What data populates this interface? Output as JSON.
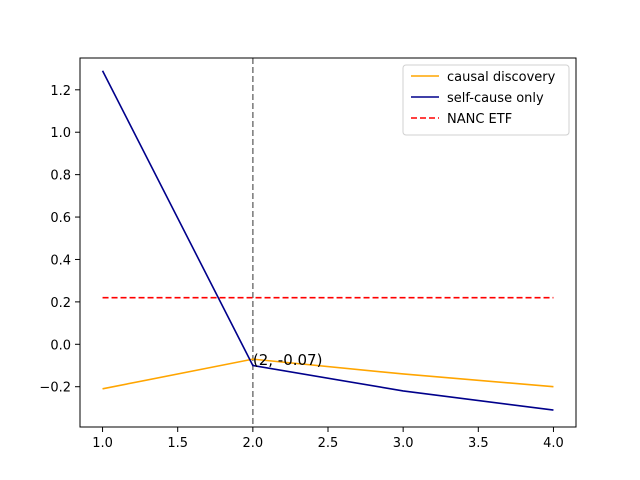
{
  "chart_data": {
    "type": "line",
    "title": "",
    "xlabel": "",
    "ylabel": "",
    "xlim": [
      0.85,
      4.15
    ],
    "ylim": [
      -0.39,
      1.35
    ],
    "xticks": [
      1.0,
      1.5,
      2.0,
      2.5,
      3.0,
      3.5,
      4.0
    ],
    "xtick_labels": [
      "1.0",
      "1.5",
      "2.0",
      "2.5",
      "3.0",
      "3.5",
      "4.0"
    ],
    "yticks": [
      -0.2,
      0.0,
      0.2,
      0.4,
      0.6,
      0.8,
      1.0,
      1.2
    ],
    "ytick_labels": [
      "−0.2",
      "0.0",
      "0.2",
      "0.4",
      "0.6",
      "0.8",
      "1.0",
      "1.2"
    ],
    "grid": false,
    "legend_position": "top-right",
    "series": [
      {
        "name": "causal discovery",
        "color": "#FFA500",
        "style": "solid",
        "x": [
          1,
          2,
          3,
          4
        ],
        "y": [
          -0.21,
          -0.07,
          -0.14,
          -0.2
        ]
      },
      {
        "name": "self-cause only",
        "color": "#00008B",
        "style": "solid",
        "x": [
          1,
          2,
          3,
          4
        ],
        "y": [
          1.29,
          -0.1,
          -0.22,
          -0.31
        ]
      },
      {
        "name": "NANC ETF",
        "color": "#FF0000",
        "style": "dashed",
        "x": [
          1,
          4
        ],
        "y": [
          0.22,
          0.22
        ]
      }
    ],
    "vline": {
      "x": 2,
      "color": "#808080",
      "style": "dashed"
    },
    "annotations": [
      {
        "text": "(2, -0.07)",
        "x": 2,
        "y": -0.07
      }
    ]
  }
}
